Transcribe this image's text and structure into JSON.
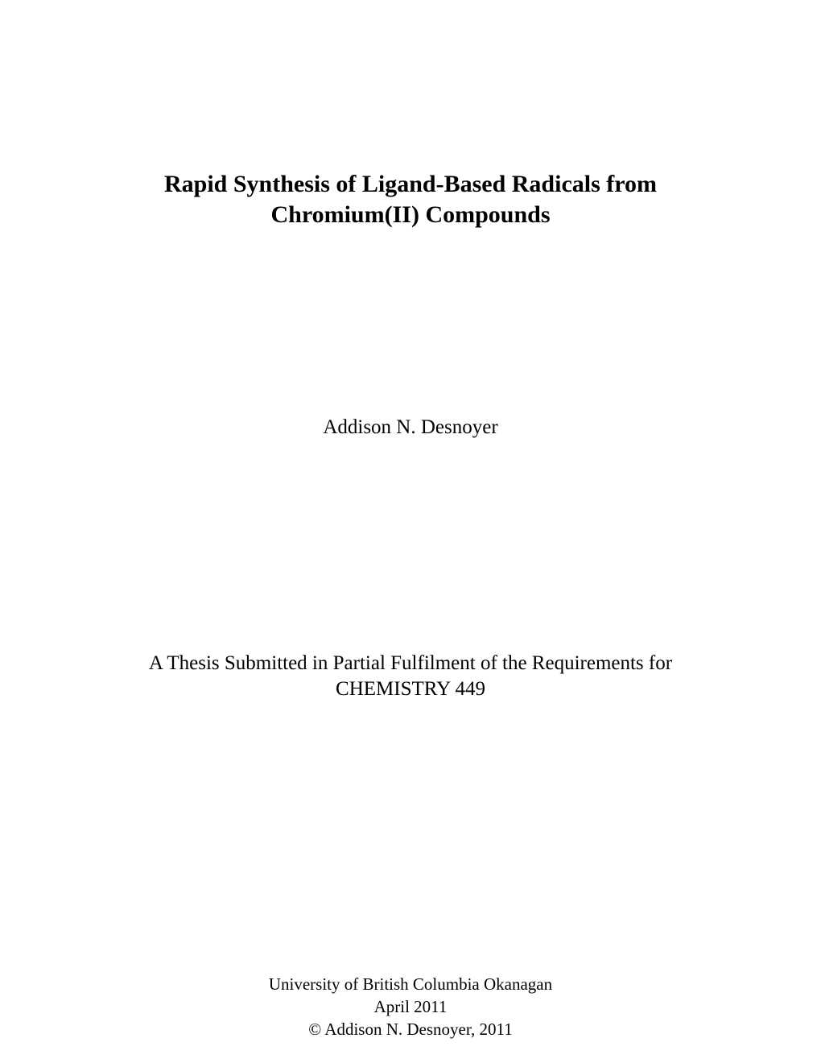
{
  "title": {
    "line1": "Rapid Synthesis of Ligand-Based Radicals from",
    "line2": "Chromium(II) Compounds",
    "font_size": 30,
    "font_weight": "bold",
    "color": "#000000"
  },
  "author": {
    "name": "Addison N. Desnoyer",
    "font_size": 25,
    "color": "#000000"
  },
  "submission": {
    "line1": "A Thesis Submitted in Partial Fulfilment of the Requirements for",
    "line2": "CHEMISTRY 449",
    "font_size": 25,
    "color": "#000000"
  },
  "footer": {
    "institution": "University of British Columbia Okanagan",
    "date": "April 2011",
    "copyright": "© Addison N. Desnoyer, 2011",
    "font_size": 21,
    "color": "#000000"
  },
  "page_background": "#ffffff",
  "font_family": "Times New Roman"
}
